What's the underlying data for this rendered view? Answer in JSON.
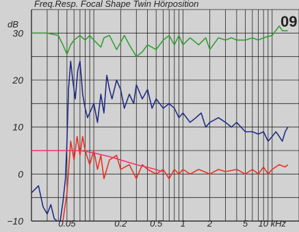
{
  "chart_data": {
    "type": "line",
    "title": "Freq.Resp. Focal Shape Twin Hörposition",
    "badge": "09",
    "ylabel": "dB",
    "xunit": "kHz",
    "xscale": "log",
    "xlim": [
      0.02,
      20
    ],
    "ylim": [
      -10,
      35
    ],
    "grid": true,
    "y_ticks": [
      {
        "value": 30,
        "label": "30"
      },
      {
        "value": 20,
        "label": "20"
      },
      {
        "value": 10,
        "label": "10"
      },
      {
        "value": 0,
        "label": "0"
      },
      {
        "value": -10,
        "label": "−10"
      }
    ],
    "x_ticks": [
      {
        "value": 0.05,
        "label": "0.05"
      },
      {
        "value": 0.2,
        "label": "0.2"
      },
      {
        "value": 0.5,
        "label": "0.5"
      },
      {
        "value": 1,
        "label": "1"
      },
      {
        "value": 2,
        "label": "2"
      },
      {
        "value": 5,
        "label": "5"
      },
      {
        "value": 10,
        "label": "10 kHz"
      }
    ],
    "series": [
      {
        "color": "#2ea02e",
        "x": [
          0.02,
          0.03,
          0.04,
          0.045,
          0.05,
          0.055,
          0.06,
          0.07,
          0.08,
          0.09,
          0.1,
          0.12,
          0.13,
          0.15,
          0.18,
          0.2,
          0.22,
          0.25,
          0.3,
          0.35,
          0.4,
          0.5,
          0.6,
          0.7,
          0.8,
          0.9,
          1.0,
          1.2,
          1.5,
          1.8,
          2,
          2.5,
          3,
          3.5,
          4,
          5,
          6,
          7,
          8,
          10,
          12,
          13,
          15
        ],
        "y": [
          30,
          30,
          29.5,
          27.5,
          25.5,
          27.5,
          28.5,
          29.5,
          28.5,
          29.5,
          28.5,
          27,
          29,
          29.5,
          26.5,
          28,
          29.5,
          27.5,
          25,
          26,
          27.5,
          26.5,
          28.5,
          29.5,
          27.5,
          29.5,
          27.5,
          29,
          27.5,
          29,
          26.5,
          29,
          28.5,
          29,
          28.5,
          28.5,
          29,
          28.5,
          29,
          29.5,
          31.5,
          30.5,
          30.5
        ]
      },
      {
        "color": "#1f2a82",
        "x": [
          0.02,
          0.024,
          0.027,
          0.03,
          0.033,
          0.036,
          0.039,
          0.042,
          0.045,
          0.048,
          0.05,
          0.052,
          0.055,
          0.058,
          0.062,
          0.066,
          0.07,
          0.075,
          0.08,
          0.085,
          0.09,
          0.1,
          0.11,
          0.12,
          0.13,
          0.14,
          0.15,
          0.16,
          0.18,
          0.2,
          0.22,
          0.25,
          0.28,
          0.3,
          0.35,
          0.4,
          0.45,
          0.5,
          0.6,
          0.7,
          0.8,
          0.9,
          1.0,
          1.2,
          1.4,
          1.6,
          1.8,
          2.0,
          2.5,
          3,
          3.5,
          4,
          5,
          6,
          7,
          8,
          9,
          10,
          11,
          12,
          13,
          14,
          15
        ],
        "y": [
          -4,
          -2.5,
          -7,
          -8.5,
          -6.5,
          -9.5,
          -10,
          -10,
          -6,
          -1,
          7,
          18,
          24,
          20,
          16,
          22,
          24,
          17,
          14,
          12,
          13,
          15,
          11,
          17,
          13,
          21,
          18,
          16,
          20,
          18,
          14,
          17,
          15,
          19,
          16,
          18,
          14,
          16,
          14,
          15,
          14,
          12,
          13,
          11,
          12,
          13,
          10,
          11,
          12,
          11,
          10,
          11,
          9,
          9,
          8.5,
          9,
          7,
          8,
          9,
          8,
          7,
          9,
          10
        ]
      },
      {
        "color": "#e83020",
        "x": [
          0.045,
          0.05,
          0.055,
          0.06,
          0.065,
          0.07,
          0.075,
          0.08,
          0.09,
          0.1,
          0.11,
          0.12,
          0.13,
          0.15,
          0.18,
          0.2,
          0.25,
          0.3,
          0.35,
          0.4,
          0.5,
          0.6,
          0.7,
          0.8,
          0.9,
          1.0,
          1.2,
          1.5,
          2,
          2.5,
          3,
          4,
          5,
          6,
          7,
          8,
          9,
          10,
          12,
          14,
          15
        ],
        "y": [
          -10,
          -4,
          7,
          3,
          8,
          4,
          8,
          5,
          2,
          5,
          1,
          4,
          -1,
          3,
          4,
          1,
          2,
          -1,
          2,
          1,
          0,
          1,
          -1,
          1,
          0,
          1,
          0,
          1,
          0,
          1,
          0.5,
          1,
          0,
          1,
          0,
          1.5,
          0,
          1,
          2,
          1.5,
          2
        ]
      },
      {
        "color": "#f03070",
        "x": [
          0.02,
          0.05,
          0.07,
          0.1,
          0.15,
          0.2,
          0.3,
          0.45,
          0.6
        ],
        "y": [
          5,
          5,
          5,
          4.5,
          3.7,
          3,
          2,
          1.2,
          0.5
        ]
      }
    ]
  }
}
